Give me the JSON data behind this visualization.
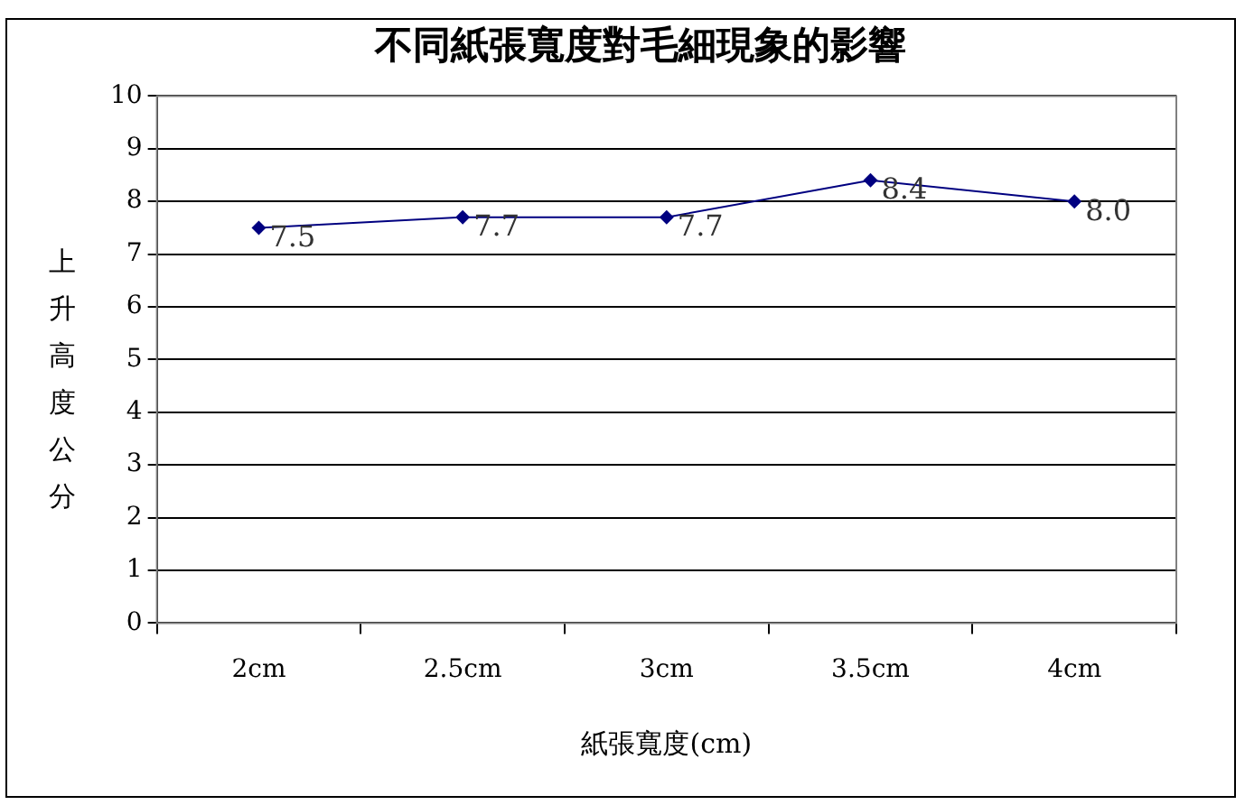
{
  "chart_data": {
    "type": "line",
    "title": "不同紙張寬度對毛細現象的影響",
    "xlabel": "紙張寬度(cm)",
    "ylabel": "上升高度公分",
    "categories": [
      "2cm",
      "2.5cm",
      "3cm",
      "3.5cm",
      "4cm"
    ],
    "series": [
      {
        "color": "#000080",
        "values": [
          7.5,
          7.7,
          7.7,
          8.4,
          8.0
        ],
        "value_labels": [
          "7.5",
          "7.7",
          "7.7",
          "8.4",
          "8.0"
        ]
      }
    ],
    "ylim": [
      0,
      10
    ],
    "yticks": [
      0,
      1,
      2,
      3,
      4,
      5,
      6,
      7,
      8,
      9,
      10
    ],
    "grid": "y",
    "legend": false,
    "marker": "diamond",
    "line_style": "solid"
  }
}
